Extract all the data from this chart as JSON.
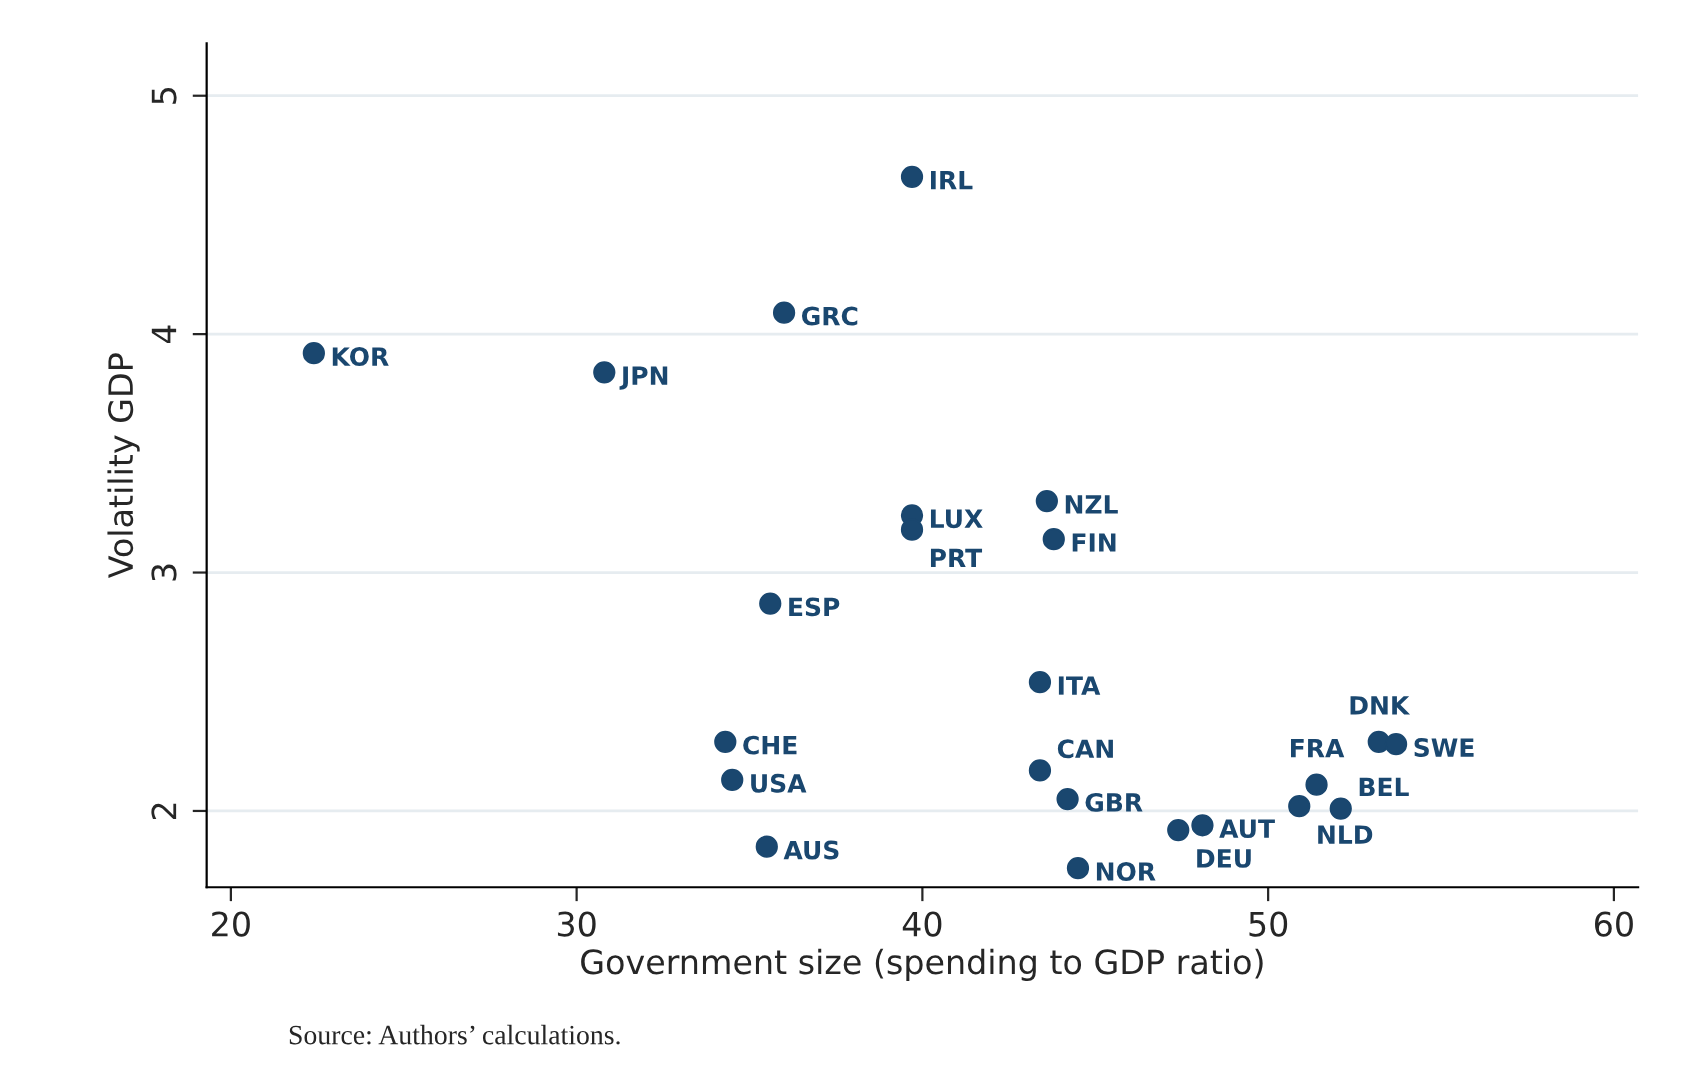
{
  "chart_data": {
    "type": "scatter",
    "xlabel": "Government size (spending to GDP ratio)",
    "ylabel": "Volatility GDP",
    "x": [
      39.7,
      36.0,
      22.4,
      30.8,
      39.7,
      39.7,
      43.6,
      43.8,
      35.6,
      43.4,
      34.3,
      34.5,
      35.5,
      43.4,
      44.2,
      44.5,
      47.4,
      48.1,
      51.4,
      50.9,
      52.1,
      53.2,
      53.7
    ],
    "series": [
      {
        "color": "#1a476f",
        "values": [
          4.66,
          4.09,
          3.92,
          3.84,
          3.24,
          3.18,
          3.3,
          3.14,
          2.87,
          2.54,
          2.29,
          2.13,
          1.85,
          2.17,
          2.05,
          1.76,
          1.92,
          1.94,
          2.11,
          2.02,
          2.01,
          2.29,
          2.28
        ]
      }
    ],
    "annotations": [
      {
        "text": "IRL",
        "x": 39.7,
        "y": 4.66
      },
      {
        "text": "GRC",
        "x": 36.0,
        "y": 4.09
      },
      {
        "text": "KOR",
        "x": 22.4,
        "y": 3.92
      },
      {
        "text": "JPN",
        "x": 30.8,
        "y": 3.84
      },
      {
        "text": "LUX",
        "x": 39.7,
        "y": 3.24
      },
      {
        "text": "PRT",
        "x": 39.7,
        "y": 3.18
      },
      {
        "text": "NZL",
        "x": 43.6,
        "y": 3.3
      },
      {
        "text": "FIN",
        "x": 43.8,
        "y": 3.14
      },
      {
        "text": "ESP",
        "x": 35.6,
        "y": 2.87
      },
      {
        "text": "ITA",
        "x": 43.4,
        "y": 2.54
      },
      {
        "text": "CHE",
        "x": 34.3,
        "y": 2.29
      },
      {
        "text": "USA",
        "x": 34.5,
        "y": 2.13
      },
      {
        "text": "AUS",
        "x": 35.5,
        "y": 1.85
      },
      {
        "text": "CAN",
        "x": 43.4,
        "y": 2.17
      },
      {
        "text": "GBR",
        "x": 44.2,
        "y": 2.05
      },
      {
        "text": "NOR",
        "x": 44.5,
        "y": 1.76
      },
      {
        "text": "DEU",
        "x": 47.4,
        "y": 1.92
      },
      {
        "text": "AUT",
        "x": 48.1,
        "y": 1.94
      },
      {
        "text": "FRA",
        "x": 51.4,
        "y": 2.11
      },
      {
        "text": "NLD",
        "x": 50.9,
        "y": 2.02
      },
      {
        "text": "BEL",
        "x": 52.1,
        "y": 2.01
      },
      {
        "text": "DNK",
        "x": 53.2,
        "y": 2.29
      },
      {
        "text": "SWE",
        "x": 53.7,
        "y": 2.28
      },
      "Source: Authors’ calculations."
    ],
    "xlim": [
      19.3,
      60.7
    ],
    "ylim": [
      1.68,
      5.22
    ],
    "xticks": [
      20,
      30,
      40,
      50,
      60
    ],
    "yticks": [
      2,
      3,
      4,
      5
    ],
    "grid": "y",
    "marker": "circle",
    "legend": false
  }
}
